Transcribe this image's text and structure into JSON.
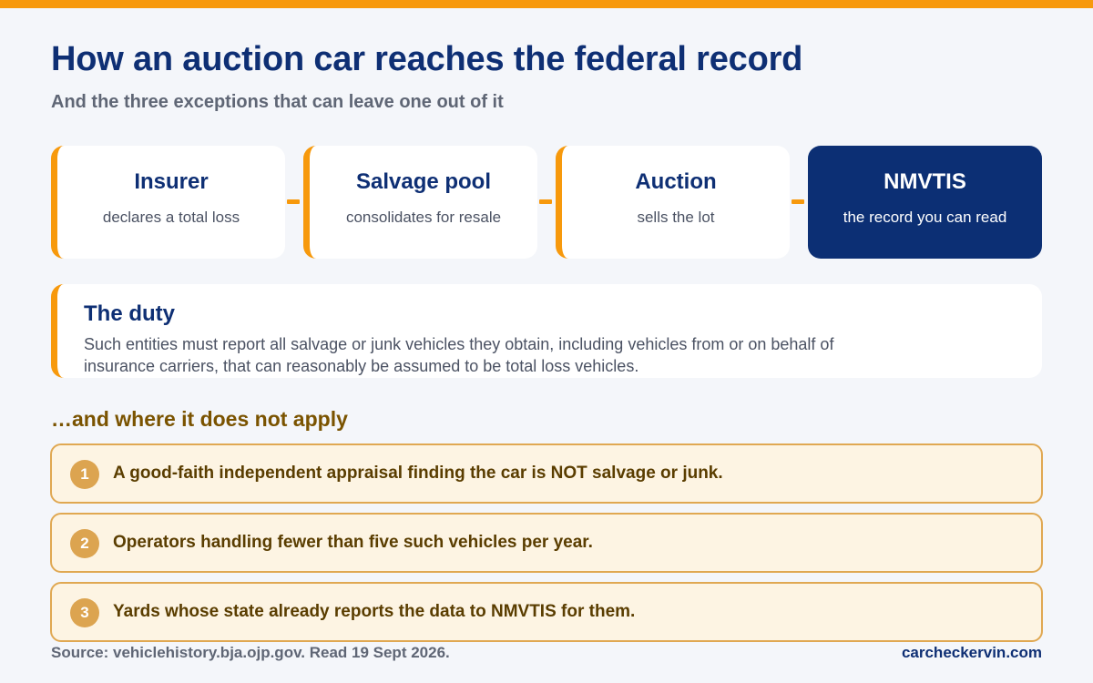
{
  "header": {
    "title": "How an auction car reaches the federal record",
    "subtitle": "And the three exceptions that can leave one out of it"
  },
  "flow": {
    "steps": [
      {
        "title": "Insurer",
        "subtitle": "declares a total loss"
      },
      {
        "title": "Salvage pool",
        "subtitle": "consolidates for resale"
      },
      {
        "title": "Auction",
        "subtitle": "sells the lot"
      },
      {
        "title": "NMVTIS",
        "subtitle": "the record you can read"
      }
    ]
  },
  "duty": {
    "title": "The duty",
    "text": "Such entities must report all salvage or junk vehicles they obtain, including vehicles from or on behalf of insurance carriers, that can reasonably be assumed to be total loss vehicles."
  },
  "exceptions": {
    "heading": "…and where it does not apply",
    "items": [
      {
        "number": "1",
        "text": "A good-faith independent appraisal finding the car is NOT salvage or junk."
      },
      {
        "number": "2",
        "text": "Operators handling fewer than five such vehicles per year."
      },
      {
        "number": "3",
        "text": "Yards whose state already reports the data to NMVTIS for them."
      }
    ]
  },
  "footer": {
    "source": "Source: vehiclehistory.bja.ojp.gov. Read 19 Sept 2026.",
    "brand": "carcheckervin.com"
  },
  "colors": {
    "accent": "#f7990c",
    "navy": "#0e2f74",
    "final_step_bg": "#0c2f74",
    "exception_bg": "#fdf4e3",
    "exception_border": "#e0a852",
    "exception_text": "#5a3d00"
  }
}
